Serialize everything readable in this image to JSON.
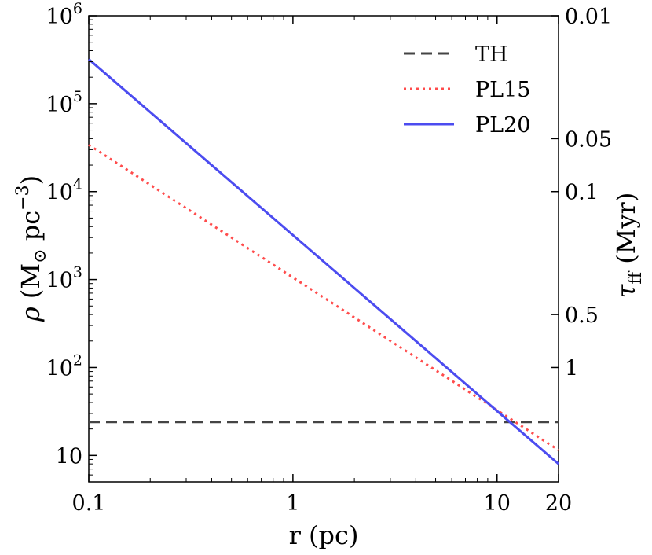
{
  "chart_data": {
    "type": "line",
    "xlabel": "r (pc)",
    "ylabel_left": "ρ (M⊙ pc−3)",
    "ylabel_right": "τff (Myr)",
    "x_scale": "log",
    "y_scale": "log",
    "xlim": [
      0.1,
      20
    ],
    "ylim_left": [
      5,
      1000000
    ],
    "x_ticks": [
      {
        "value": 0.1,
        "label": "0.1"
      },
      {
        "value": 1,
        "label": "1"
      },
      {
        "value": 10,
        "label": "10"
      },
      {
        "value": 20,
        "label": "20"
      }
    ],
    "y_ticks_left": [
      {
        "value": 10,
        "base": "10",
        "exp": ""
      },
      {
        "value": 100,
        "base": "10",
        "exp": "2"
      },
      {
        "value": 1000,
        "base": "10",
        "exp": "3"
      },
      {
        "value": 10000,
        "base": "10",
        "exp": "4"
      },
      {
        "value": 100000,
        "base": "10",
        "exp": "5"
      },
      {
        "value": 1000000,
        "base": "10",
        "exp": "6"
      }
    ],
    "y_ticks_right": [
      {
        "value": 0.01,
        "label": "0.01"
      },
      {
        "value": 0.05,
        "label": "0.05"
      },
      {
        "value": 0.1,
        "label": "0.1"
      },
      {
        "value": 0.5,
        "label": "0.5"
      },
      {
        "value": 1,
        "label": "1"
      }
    ],
    "grid": false,
    "legend_position": "top-right",
    "series": [
      {
        "name": "TH",
        "color": "#444444",
        "style": "dashed",
        "x": [
          0.1,
          20
        ],
        "y": [
          24,
          24
        ]
      },
      {
        "name": "PL15",
        "color": "#ff4c4c",
        "style": "dotted",
        "x": [
          0.1,
          20
        ],
        "y": [
          34000,
          11.5
        ]
      },
      {
        "name": "PL20",
        "color": "#4c4cf0",
        "style": "solid",
        "x": [
          0.1,
          20
        ],
        "y": [
          320000,
          8
        ]
      }
    ]
  }
}
